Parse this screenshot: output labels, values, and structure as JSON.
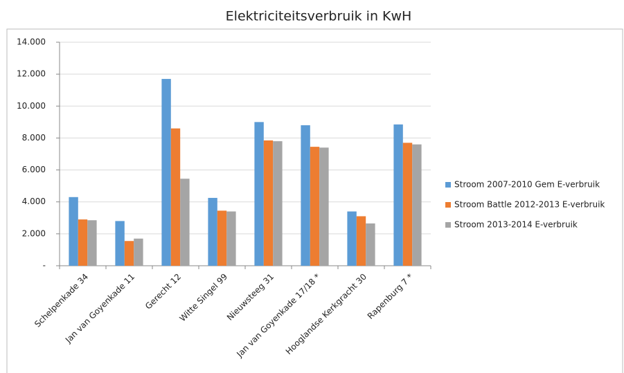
{
  "chart_data": {
    "type": "bar",
    "title": "Elektriciteitsverbruik in KwH",
    "categories": [
      "Schelpenkade 34",
      "Jan van Goyenkade 11",
      "Gerecht 12",
      "Witte Singel 99",
      "Nieuwsteeg 31",
      "Jan van Goyenkade 17/18 *",
      "Hooglandse Kerkgracht 30",
      "Rapenburg 7 *"
    ],
    "series": [
      {
        "name": "Stroom 2007-2010 Gem E-verbruik",
        "color": "#5b9bd5",
        "values": [
          4300,
          2800,
          11700,
          4250,
          9000,
          8800,
          3400,
          8850
        ]
      },
      {
        "name": "Stroom Battle 2012-2013 E-verbruik",
        "color": "#ed7d31",
        "values": [
          2900,
          1550,
          8600,
          3450,
          7850,
          7450,
          3100,
          7700
        ]
      },
      {
        "name": "Stroom 2013-2014 E-verbruik",
        "color": "#a5a5a5",
        "values": [
          2850,
          1700,
          5450,
          3400,
          7800,
          7400,
          2650,
          7600
        ]
      }
    ],
    "ylim": [
      0,
      14000
    ],
    "yticks": [
      {
        "value": 0,
        "label": "-"
      },
      {
        "value": 2000,
        "label": "2.000"
      },
      {
        "value": 4000,
        "label": "4.000"
      },
      {
        "value": 6000,
        "label": "6.000"
      },
      {
        "value": 8000,
        "label": "8.000"
      },
      {
        "value": 10000,
        "label": "10.000"
      },
      {
        "value": 12000,
        "label": "12.000"
      },
      {
        "value": 14000,
        "label": "14.000"
      }
    ],
    "grid": true,
    "legend": "right"
  }
}
